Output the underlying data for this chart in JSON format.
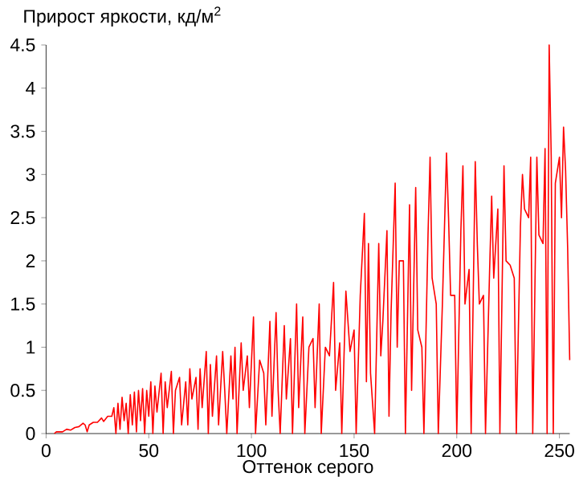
{
  "chart_data": {
    "type": "line",
    "ylabel": "Прирост яркости, кд/м$^{2}$",
    "xlabel": "Оттенок серого",
    "xlim": [
      0,
      255
    ],
    "ylim": [
      0,
      4.5
    ],
    "xticks": [
      0,
      50,
      100,
      150,
      200,
      250
    ],
    "yticks": [
      0,
      0.5,
      1,
      1.5,
      2,
      2.5,
      3,
      3.5,
      4,
      4.5
    ],
    "series": [
      {
        "color": "#ff0000",
        "x": [
          4,
          5,
          8,
          10,
          12,
          14,
          16,
          18,
          19,
          20,
          21,
          23,
          25,
          27,
          28,
          30,
          32,
          33,
          34,
          35,
          36,
          37,
          38,
          39,
          40,
          41,
          42,
          43,
          44,
          45,
          46,
          47,
          48,
          49,
          50,
          51,
          52,
          53,
          54,
          56,
          57,
          58,
          59,
          61,
          62,
          63,
          65,
          66,
          68,
          69,
          70,
          71,
          73,
          74,
          75,
          76,
          78,
          79,
          80,
          81,
          83,
          84,
          86,
          87,
          88,
          90,
          91,
          92,
          93,
          95,
          96,
          98,
          99,
          101,
          102,
          104,
          106,
          107,
          109,
          110,
          112,
          113,
          114,
          116,
          117,
          119,
          120,
          122,
          123,
          125,
          126,
          128,
          130,
          131,
          133,
          134,
          136,
          138,
          140,
          141,
          143,
          144,
          146,
          148,
          150,
          151,
          153,
          155,
          156,
          157,
          158,
          160,
          162,
          163,
          164,
          166,
          167,
          168,
          170,
          171,
          172,
          174,
          175,
          177,
          178,
          180,
          181,
          183,
          184,
          186,
          187,
          188,
          190,
          191,
          193,
          195,
          196,
          197,
          199,
          200,
          202,
          203,
          204,
          206,
          207,
          209,
          210,
          211,
          213,
          214,
          216,
          217,
          218,
          220,
          221,
          223,
          224,
          226,
          228,
          229,
          231,
          232,
          233,
          235,
          236,
          237,
          239,
          240,
          242,
          243,
          244,
          245,
          246,
          247,
          248,
          250,
          251,
          252,
          253,
          254,
          255
        ],
        "values": [
          0,
          0.02,
          0.02,
          0.05,
          0.04,
          0.07,
          0.08,
          0.12,
          0.1,
          0.02,
          0.1,
          0.13,
          0.13,
          0.18,
          0.14,
          0.2,
          0.2,
          0.3,
          0,
          0.35,
          0.05,
          0.42,
          0.15,
          0.35,
          0,
          0.45,
          0.1,
          0.48,
          0.02,
          0.5,
          0.15,
          0.52,
          0,
          0.5,
          0.2,
          0.6,
          0,
          0.55,
          0.25,
          0.7,
          0,
          0.6,
          0.3,
          0.72,
          0,
          0.5,
          0.65,
          0.1,
          0.6,
          0.1,
          0.75,
          0.4,
          0.65,
          0.05,
          0.75,
          0.3,
          0.95,
          0,
          0.8,
          0.2,
          0.9,
          0.1,
          0.95,
          0.5,
          0,
          0.9,
          0.4,
          1,
          0,
          1.05,
          0.5,
          0.9,
          0.3,
          1.35,
          0,
          0.85,
          0.7,
          0.1,
          1.3,
          0.2,
          1.4,
          0.5,
          0,
          1.25,
          0.4,
          1.1,
          0,
          1.5,
          0.3,
          1.35,
          0,
          1,
          1.1,
          0.3,
          1.5,
          0,
          1,
          0.9,
          1.75,
          0.5,
          1.05,
          0,
          1.65,
          0.95,
          1.2,
          0,
          1.6,
          2.55,
          0.6,
          2.2,
          0.7,
          0,
          2.2,
          0.9,
          1.3,
          2.35,
          0.2,
          1.4,
          2.9,
          1,
          2,
          2,
          0,
          2.65,
          0.5,
          2.85,
          1.2,
          1,
          0,
          2.3,
          3.2,
          1.8,
          1.5,
          0,
          1.5,
          3.25,
          2.5,
          1.6,
          1.6,
          0,
          2.35,
          3.1,
          1.5,
          1.9,
          0,
          3.15,
          2.2,
          1.5,
          1.6,
          0,
          1.9,
          2.75,
          1.8,
          2.6,
          0,
          3.1,
          2,
          1.95,
          1.8,
          0,
          2.4,
          3,
          2.6,
          2.5,
          3.2,
          0,
          3.2,
          2.3,
          2.2,
          3.3,
          0,
          4.5,
          3.2,
          0,
          2.9,
          3.2,
          2.5,
          3.55,
          3.05,
          2.15,
          0.85
        ]
      }
    ]
  }
}
